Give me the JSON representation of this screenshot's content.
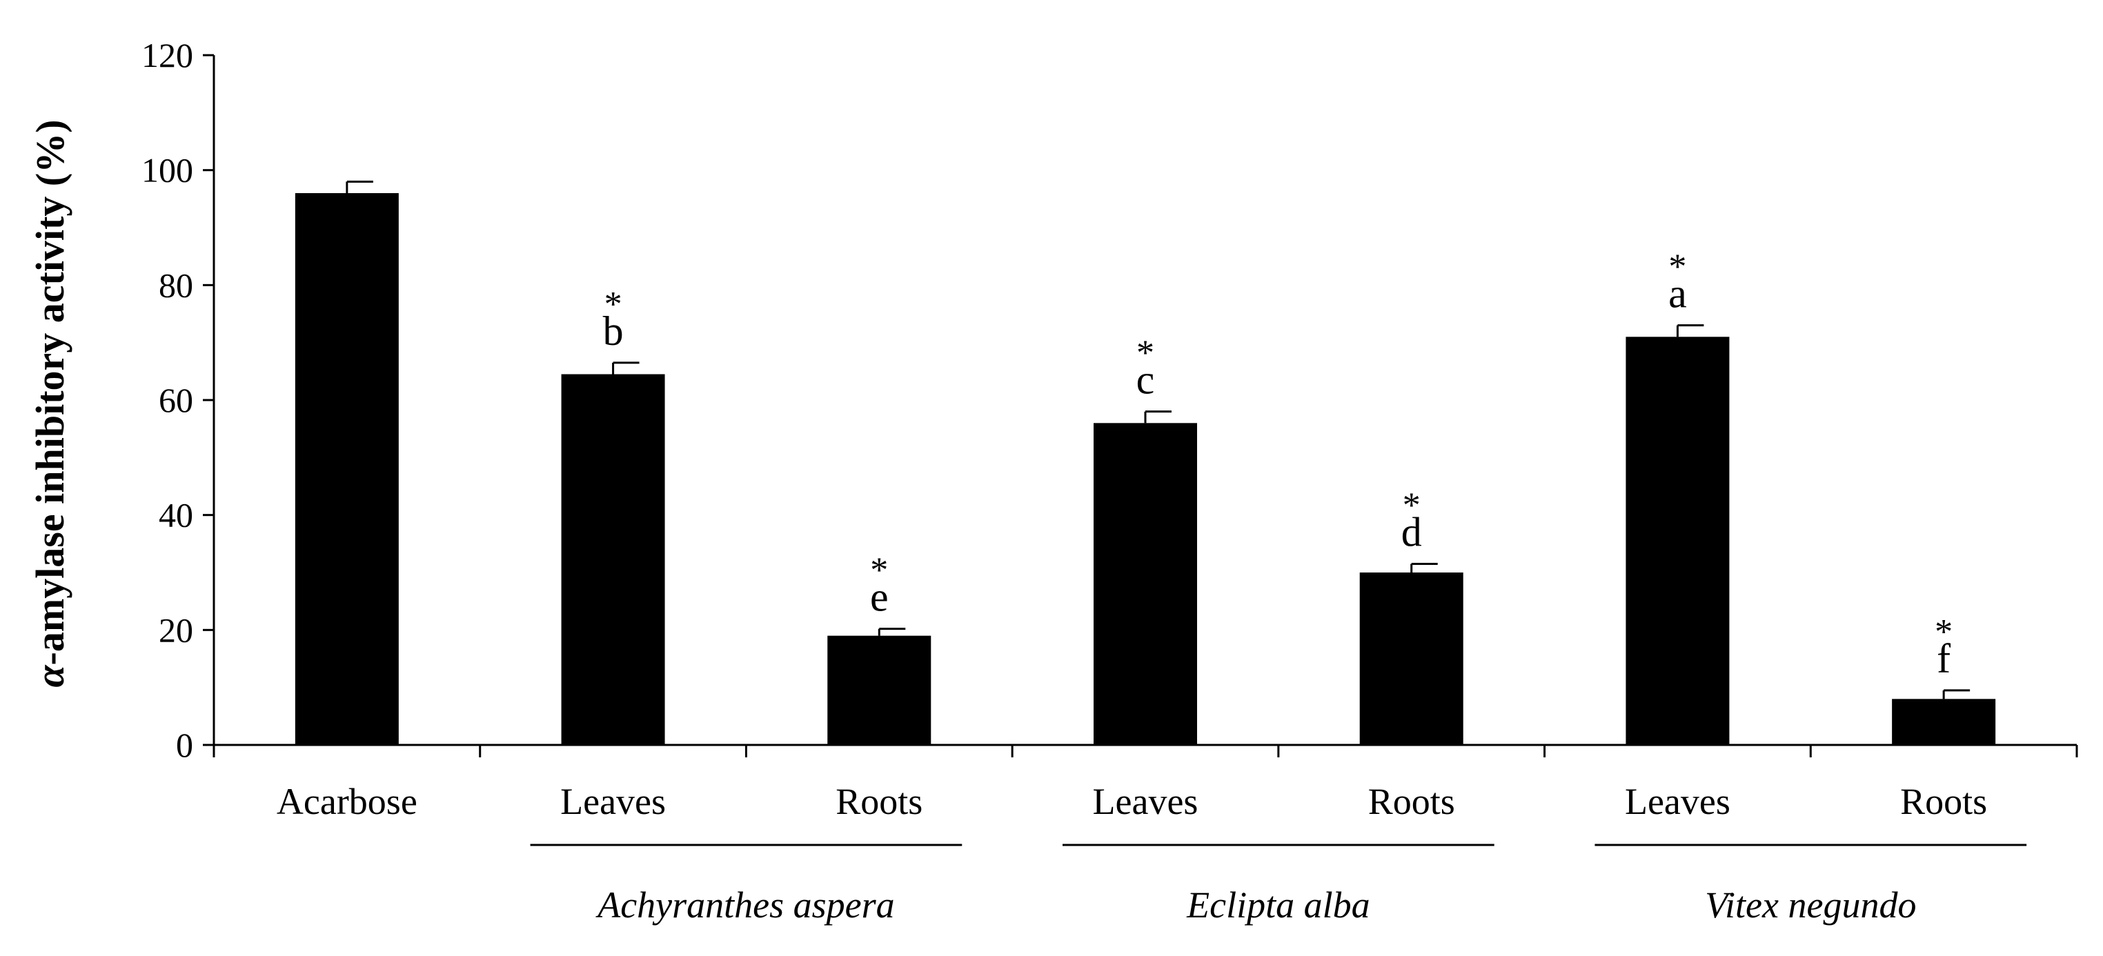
{
  "chart_data": {
    "type": "bar",
    "ylabel_symbol": "α",
    "ylabel_rest": "-amylase inhibitory activity (%)",
    "ylim": [
      0,
      120
    ],
    "yticks": [
      0,
      20,
      40,
      60,
      80,
      100,
      120
    ],
    "grid": false,
    "bar_color": "#000000",
    "categories": [
      "Acarbose",
      "Leaves",
      "Roots",
      "Leaves",
      "Roots",
      "Leaves",
      "Roots"
    ],
    "values": [
      96,
      64.5,
      19,
      56,
      30,
      71,
      8
    ],
    "errors": [
      2,
      2,
      1.2,
      2,
      1.5,
      2,
      1.5
    ],
    "significance": [
      "",
      "*",
      "*",
      "*",
      "*",
      "*",
      "*"
    ],
    "letters": [
      "",
      "b",
      "e",
      "c",
      "d",
      "a",
      "f"
    ],
    "groups": [
      {
        "name": "Achyranthes aspera",
        "first": 1,
        "last": 2
      },
      {
        "name": "Eclipta alba",
        "first": 3,
        "last": 4
      },
      {
        "name": "Vitex negundo",
        "first": 5,
        "last": 6
      }
    ]
  }
}
